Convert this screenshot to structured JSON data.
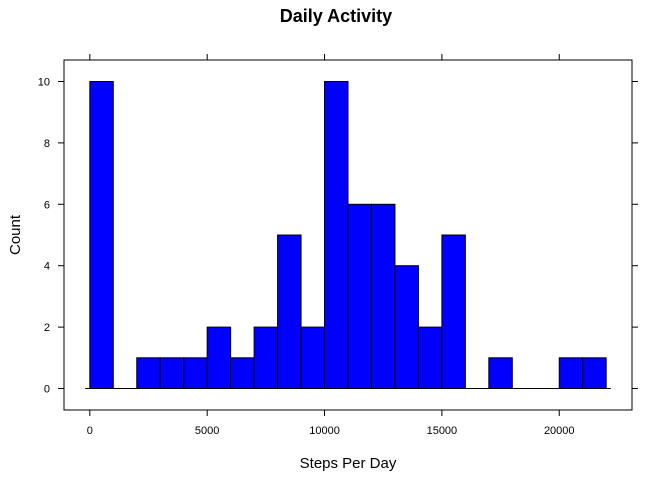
{
  "chart_data": {
    "type": "bar",
    "title": "Daily Activity",
    "xlabel": "Steps Per Day",
    "ylabel": "Count",
    "xlim": [
      -1100,
      23100
    ],
    "ylim": [
      -0.7,
      10.7
    ],
    "bin_width": 1000,
    "bins": [
      {
        "start": 0,
        "count": 10
      },
      {
        "start": 1000,
        "count": 0
      },
      {
        "start": 2000,
        "count": 1
      },
      {
        "start": 3000,
        "count": 1
      },
      {
        "start": 4000,
        "count": 1
      },
      {
        "start": 5000,
        "count": 2
      },
      {
        "start": 6000,
        "count": 1
      },
      {
        "start": 7000,
        "count": 2
      },
      {
        "start": 8000,
        "count": 5
      },
      {
        "start": 9000,
        "count": 2
      },
      {
        "start": 10000,
        "count": 10
      },
      {
        "start": 11000,
        "count": 6
      },
      {
        "start": 12000,
        "count": 6
      },
      {
        "start": 13000,
        "count": 4
      },
      {
        "start": 14000,
        "count": 2
      },
      {
        "start": 15000,
        "count": 5
      },
      {
        "start": 16000,
        "count": 0
      },
      {
        "start": 17000,
        "count": 1
      },
      {
        "start": 18000,
        "count": 0
      },
      {
        "start": 19000,
        "count": 0
      },
      {
        "start": 20000,
        "count": 1
      },
      {
        "start": 21000,
        "count": 1
      }
    ],
    "x_ticks": [
      0,
      5000,
      10000,
      15000,
      20000
    ],
    "y_ticks": [
      0,
      2,
      4,
      6,
      8,
      10
    ],
    "bar_color": "#0000ff",
    "grid": false,
    "legend": "none"
  }
}
